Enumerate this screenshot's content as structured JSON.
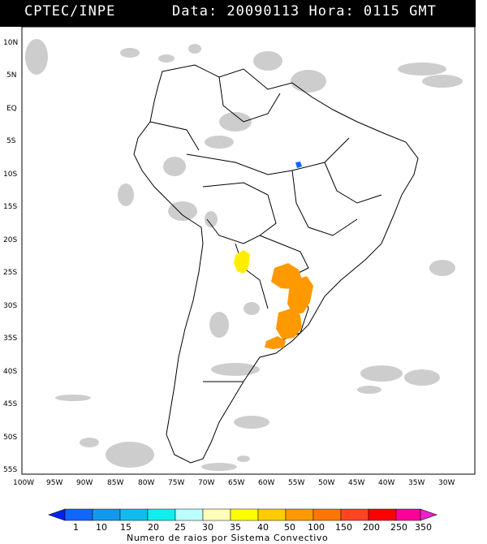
{
  "header": {
    "source": "CPTEC/INPE",
    "datetime": "Data: 20090113 Hora: 0115 GMT"
  },
  "map": {
    "lat_labels": [
      "10N",
      "5N",
      "EQ",
      "5S",
      "10S",
      "15S",
      "20S",
      "25S",
      "30S",
      "35S",
      "40S",
      "45S",
      "50S",
      "55S"
    ],
    "lon_labels": [
      "100W",
      "95W",
      "90W",
      "85W",
      "80W",
      "75W",
      "70W",
      "65W",
      "60W",
      "55W",
      "50W",
      "45W",
      "40W",
      "35W",
      "30W"
    ]
  },
  "colorbar": {
    "labels": [
      "1",
      "10",
      "15",
      "20",
      "25",
      "30",
      "35",
      "40",
      "50",
      "100",
      "150",
      "200",
      "250",
      "350"
    ],
    "colors": [
      "#0022ee",
      "#1166ff",
      "#1199ee",
      "#11bbee",
      "#11eeee",
      "#bbffff",
      "#ffffbb",
      "#ffff00",
      "#ffcc00",
      "#ff9900",
      "#ff7700",
      "#ff4422",
      "#ff0000",
      "#ff0099",
      "#ee22cc"
    ],
    "title": "Numero de raios por Sistema Convectivo"
  }
}
